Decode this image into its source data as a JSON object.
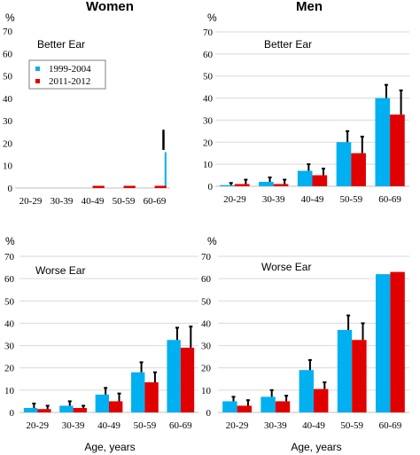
{
  "columns": {
    "left_title": "Women",
    "right_title": "Men"
  },
  "x_axis_label": "Age, years",
  "legend": {
    "entries": [
      {
        "label": "1999-2004",
        "color": "#00B0F0"
      },
      {
        "label": "2011-2012",
        "color": "#E00000"
      }
    ]
  },
  "colors": {
    "series_1999": "#00B0F0",
    "series_2011": "#E00000",
    "errorbar": "#000000",
    "grid": "#d9d9d9"
  },
  "chart_data": [
    {
      "type": "bar",
      "panel": "women-better",
      "title": "Better Ear",
      "unit_label": "%",
      "categories": [
        "20-29",
        "30-39",
        "40-49",
        "50-59",
        "60-69"
      ],
      "ylim": [
        0,
        70
      ],
      "yticks": [
        0,
        10,
        20,
        30,
        40,
        50,
        60,
        70
      ],
      "grid": false,
      "legend": "top-left",
      "series": [
        {
          "name": "1999-2004",
          "values": [
            0,
            0,
            0,
            0,
            16
          ],
          "errors": [
            0,
            0,
            0,
            0,
            0
          ]
        },
        {
          "name": "2011-2012",
          "values": [
            0,
            0,
            1,
            1,
            1
          ],
          "errors": [
            0,
            0,
            0,
            0,
            0
          ]
        }
      ],
      "free_marks": [
        {
          "category": "60-69",
          "from": 17,
          "to": 26
        }
      ]
    },
    {
      "type": "bar",
      "panel": "men-better",
      "title": "Better Ear",
      "unit_label": "%",
      "categories": [
        "20-29",
        "30-39",
        "40-49",
        "50-59",
        "60-69"
      ],
      "ylim": [
        0,
        70
      ],
      "yticks": [
        0,
        10,
        20,
        30,
        40,
        50,
        60,
        70
      ],
      "grid": true,
      "series": [
        {
          "name": "1999-2004",
          "values": [
            0.5,
            2,
            7,
            20,
            40
          ],
          "errors": [
            1,
            2,
            3,
            5,
            6
          ]
        },
        {
          "name": "2011-2012",
          "values": [
            1,
            1,
            5,
            15,
            32.5
          ],
          "errors": [
            2,
            2,
            3,
            7.5,
            11
          ]
        }
      ]
    },
    {
      "type": "bar",
      "panel": "women-worse",
      "title": "Worse Ear",
      "unit_label": "%",
      "categories": [
        "20-29",
        "30-39",
        "40-49",
        "50-59",
        "60-69"
      ],
      "ylim": [
        0,
        70
      ],
      "yticks": [
        0,
        10,
        20,
        30,
        40,
        50,
        60,
        70
      ],
      "grid": true,
      "series": [
        {
          "name": "1999-2004",
          "values": [
            2,
            3,
            8,
            18,
            32.5
          ],
          "errors": [
            2,
            2,
            3,
            4.5,
            5.5
          ]
        },
        {
          "name": "2011-2012",
          "values": [
            1.5,
            2,
            5,
            13.5,
            29
          ],
          "errors": [
            1.5,
            1,
            3.5,
            4.5,
            9.5
          ]
        }
      ]
    },
    {
      "type": "bar",
      "panel": "men-worse",
      "title": "Worse Ear",
      "unit_label": "%",
      "categories": [
        "20-29",
        "30-39",
        "40-49",
        "50-59",
        "60-69"
      ],
      "ylim": [
        0,
        70
      ],
      "yticks": [
        0,
        10,
        20,
        30,
        40,
        50,
        60,
        70
      ],
      "grid": true,
      "series": [
        {
          "name": "1999-2004",
          "values": [
            5,
            7,
            19,
            37,
            62
          ],
          "errors": [
            2,
            3,
            4.5,
            6.5,
            0
          ]
        },
        {
          "name": "2011-2012",
          "values": [
            3,
            5,
            10.5,
            32.5,
            63
          ],
          "errors": [
            2.5,
            2.5,
            3,
            7.5,
            0
          ]
        }
      ]
    }
  ]
}
